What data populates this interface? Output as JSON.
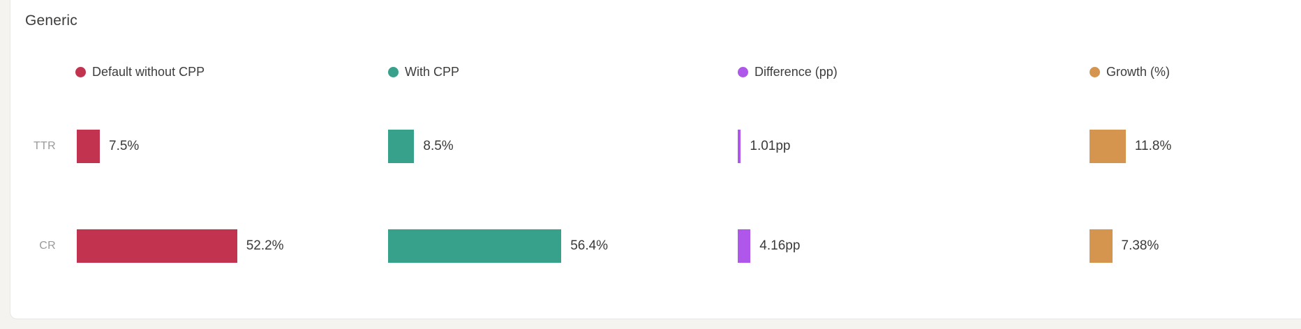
{
  "card": {
    "title": "Generic"
  },
  "chart_data": {
    "type": "bar",
    "title": "Generic",
    "orientation": "horizontal",
    "legend_position": "top",
    "grid": false,
    "categories": [
      "TTR",
      "CR"
    ],
    "series": [
      {
        "name": "Default without CPP",
        "color": "#c1334e",
        "values": [
          7.5,
          52.2
        ],
        "labels": [
          "7.5%",
          "52.2%"
        ]
      },
      {
        "name": "With CPP",
        "color": "#38a18c",
        "values": [
          8.5,
          56.4
        ],
        "labels": [
          "8.5%",
          "56.4%"
        ]
      },
      {
        "name": "Difference (pp)",
        "color": "#ae57ea",
        "values": [
          1.01,
          4.16
        ],
        "labels": [
          "1.01pp",
          "4.16pp"
        ]
      },
      {
        "name": "Growth (%)",
        "color": "#d6954f",
        "values": [
          11.8,
          7.38
        ],
        "labels": [
          "11.8%",
          "7.38%"
        ]
      }
    ],
    "xlabel": "",
    "ylabel": "",
    "value_suffixes": [
      "%",
      "%",
      "pp",
      "%"
    ]
  },
  "colors": {
    "background": "#f4f3f0",
    "card_background": "#ffffff",
    "card_border": "#e8e7e3",
    "title_text": "#3c3c3b",
    "row_label_text": "#9a9a9a",
    "value_text": "#3a3a39"
  }
}
